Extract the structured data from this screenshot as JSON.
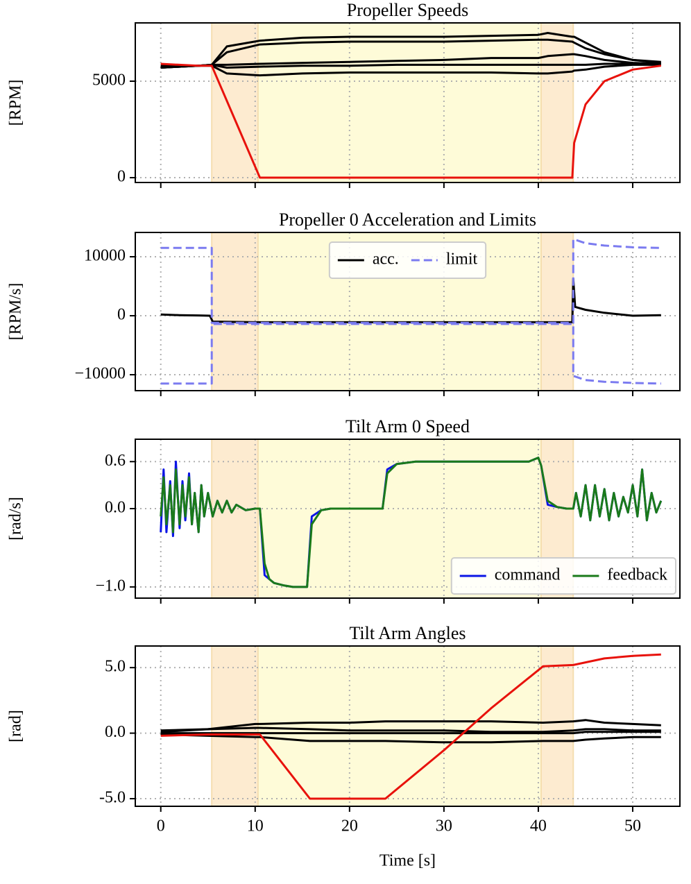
{
  "chart_data": [
    {
      "type": "line",
      "title": "Propeller Speeds",
      "ylabel": "[RPM]",
      "xlim": [
        -2.7,
        55
      ],
      "xticks": [
        0,
        10,
        20,
        30,
        40,
        50
      ],
      "show_xtick_labels": false,
      "ylim": [
        -250,
        8020
      ],
      "yticks": [
        0,
        5000
      ],
      "grid": true,
      "spans": [
        {
          "x0": 5.4,
          "x1": 43.7,
          "color": "#fdebd0"
        },
        {
          "x0": 10.3,
          "x1": 40.3,
          "color": "#fefbd8"
        }
      ],
      "series": [
        {
          "color": "#000000",
          "x": [
            0,
            2,
            4,
            5.4,
            7,
            10.5,
            15,
            20,
            25,
            30,
            35,
            40,
            41,
            43.6,
            43.8,
            45,
            47,
            50,
            53
          ],
          "values": [
            5750,
            5800,
            5800,
            5850,
            6800,
            7100,
            7250,
            7300,
            7300,
            7300,
            7350,
            7400,
            7500,
            7300,
            7300,
            7000,
            6500,
            6100,
            5950
          ]
        },
        {
          "color": "#000000",
          "x": [
            0,
            2,
            4,
            5.4,
            7,
            10.5,
            15,
            20,
            25,
            30,
            35,
            40,
            41,
            43.6,
            43.8,
            45,
            47,
            50,
            53
          ],
          "values": [
            5700,
            5750,
            5800,
            5850,
            6500,
            6900,
            7000,
            7050,
            7050,
            7050,
            7100,
            7150,
            7150,
            7050,
            7000,
            6700,
            6400,
            6100,
            6000
          ]
        },
        {
          "color": "#000000",
          "x": [
            0,
            2,
            4,
            5.4,
            7,
            10.5,
            15,
            20,
            25,
            30,
            35,
            40,
            41,
            43.6,
            43.8,
            45,
            47,
            50,
            53
          ],
          "values": [
            5700,
            5750,
            5800,
            5850,
            5850,
            5900,
            5950,
            6000,
            6050,
            6100,
            6200,
            6200,
            6300,
            6400,
            6400,
            6300,
            6100,
            5950,
            5900
          ]
        },
        {
          "color": "#000000",
          "x": [
            0,
            2,
            4,
            5.4,
            7,
            10.5,
            15,
            20,
            25,
            30,
            35,
            40,
            41,
            43.6,
            43.8,
            45,
            47,
            50,
            53
          ],
          "values": [
            5800,
            5800,
            5800,
            5850,
            5700,
            5750,
            5800,
            5800,
            5850,
            5850,
            5850,
            5850,
            5850,
            5850,
            5850,
            5850,
            5900,
            5900,
            5900
          ]
        },
        {
          "color": "#000000",
          "x": [
            0,
            2,
            4,
            5.4,
            7,
            10.5,
            15,
            20,
            25,
            30,
            35,
            40,
            41,
            43.6,
            43.8,
            45,
            47,
            50,
            53
          ],
          "values": [
            5700,
            5750,
            5800,
            5800,
            5400,
            5300,
            5400,
            5450,
            5450,
            5450,
            5450,
            5400,
            5400,
            5500,
            5550,
            5600,
            5750,
            5850,
            5850
          ]
        },
        {
          "color": "#e8120c",
          "x": [
            0,
            2,
            4,
            5.4,
            7,
            10.5,
            15,
            20,
            25,
            30,
            35,
            40,
            41,
            43.6,
            43.8,
            45,
            47,
            50,
            53
          ],
          "values": [
            5900,
            5850,
            5800,
            5800,
            3980,
            0,
            0,
            0,
            0,
            0,
            0,
            0,
            0,
            0,
            1800,
            3800,
            5000,
            5600,
            5800
          ]
        }
      ]
    },
    {
      "type": "line",
      "title": "Propeller 0 Acceleration and Limits",
      "ylabel": "[RPM/s]",
      "xlim": [
        -2.7,
        55
      ],
      "xticks": [
        0,
        10,
        20,
        30,
        40,
        50
      ],
      "show_xtick_labels": false,
      "ylim": [
        -12700,
        14120
      ],
      "yticks": [
        {
          "value": -10000,
          "label": "−10000"
        },
        0,
        10000
      ],
      "grid": true,
      "legend": "upper center",
      "spans": [
        {
          "x0": 5.4,
          "x1": 43.7,
          "color": "#fdebd0"
        },
        {
          "x0": 10.3,
          "x1": 40.3,
          "color": "#fefbd8"
        }
      ],
      "series": [
        {
          "name": "acc.",
          "color": "#000000",
          "x": [
            0,
            2,
            4,
            5.2,
            5.5,
            10,
            20,
            30,
            40,
            43.6,
            43.7,
            43.9,
            45,
            47,
            50,
            53
          ],
          "values": [
            200,
            100,
            50,
            0,
            -1000,
            -1100,
            -1100,
            -1100,
            -1100,
            -1100,
            6300,
            1500,
            1000,
            500,
            0,
            100
          ]
        },
        {
          "name": "limit",
          "color": "#7b7bf0",
          "dashed": true,
          "x": [
            0,
            5.4,
            5.4,
            43.7,
            43.7,
            45,
            47,
            50,
            53
          ],
          "values": [
            11500,
            11500,
            -1200,
            -1200,
            13000,
            12300,
            11900,
            11600,
            11500
          ]
        },
        {
          "color": "#7b7bf0",
          "dashed": true,
          "x": [
            0,
            5.4,
            5.4,
            43.7,
            43.7,
            45,
            47,
            50,
            53
          ],
          "values": [
            -11500,
            -11500,
            -1400,
            -1400,
            -10200,
            -10900,
            -11200,
            -11400,
            -11500
          ]
        }
      ]
    },
    {
      "type": "line",
      "title": "Tilt Arm 0 Speed",
      "ylabel": "[rad/s]",
      "xlim": [
        -2.7,
        55
      ],
      "xticks": [
        0,
        10,
        20,
        30,
        40,
        50
      ],
      "show_xtick_labels": false,
      "ylim": [
        -1.143,
        0.886
      ],
      "yticks": [
        {
          "value": -1,
          "label": "−1.0"
        },
        {
          "value": 0,
          "label": "0.0"
        },
        0.6
      ],
      "grid": true,
      "legend": "lower right",
      "spans": [
        {
          "x0": 5.4,
          "x1": 43.7,
          "color": "#fdebd0"
        },
        {
          "x0": 10.3,
          "x1": 40.3,
          "color": "#fefbd8"
        }
      ],
      "series": [
        {
          "name": "command",
          "color": "#0a14e6",
          "x": [
            0,
            0.3,
            0.6,
            1,
            1.3,
            1.6,
            2,
            2.3,
            2.6,
            3,
            3.3,
            3.6,
            4,
            4.3,
            4.6,
            5,
            5.5,
            6,
            6.5,
            7,
            7.5,
            8,
            9,
            10,
            10.5,
            11,
            11.5,
            12,
            13,
            14,
            15,
            15.5,
            16,
            17,
            18,
            20,
            22,
            23.5,
            24,
            25,
            27,
            30,
            33,
            36,
            39,
            40,
            40.3,
            41,
            42,
            43,
            43.7,
            44,
            44.5,
            45,
            45.5,
            46,
            46.5,
            47,
            47.5,
            48,
            48.5,
            49,
            49.5,
            50,
            50.5,
            51,
            51.5,
            52,
            52.5,
            53
          ],
          "values": [
            -0.3,
            0.5,
            -0.3,
            0.35,
            -0.35,
            0.6,
            -0.25,
            0.35,
            -0.15,
            0.45,
            -0.2,
            0.2,
            -0.3,
            0.3,
            -0.1,
            0.2,
            -0.1,
            0.1,
            -0.05,
            0.1,
            -0.05,
            0.05,
            -0.02,
            0,
            0,
            -0.85,
            -0.9,
            -0.95,
            -0.98,
            -1,
            -1,
            -1,
            -0.1,
            -0.02,
            0,
            0,
            0,
            0,
            0.5,
            0.57,
            0.6,
            0.6,
            0.6,
            0.6,
            0.6,
            0.65,
            0.55,
            0.05,
            0.02,
            0,
            0,
            0.2,
            -0.1,
            0.3,
            -0.15,
            0.3,
            -0.1,
            0.25,
            -0.15,
            0.2,
            -0.1,
            0.15,
            -0.05,
            0.3,
            -0.1,
            0.5,
            -0.15,
            0.2,
            -0.05,
            0.1
          ]
        },
        {
          "name": "feedback",
          "color": "#1a7a1a",
          "x": [
            0,
            0.3,
            0.6,
            1,
            1.3,
            1.6,
            2,
            2.3,
            2.6,
            3,
            3.3,
            3.6,
            4,
            4.3,
            4.6,
            5,
            5.5,
            6,
            6.5,
            7,
            7.5,
            8,
            9,
            10,
            10.5,
            11,
            11.5,
            12,
            13,
            14,
            15,
            15.5,
            16,
            17,
            18,
            20,
            22,
            23.5,
            24,
            25,
            27,
            30,
            33,
            36,
            39,
            40,
            40.3,
            41,
            42,
            43,
            43.7,
            44,
            44.5,
            45,
            45.5,
            46,
            46.5,
            47,
            47.5,
            48,
            48.5,
            49,
            49.5,
            50,
            50.5,
            51,
            51.5,
            52,
            52.5,
            53
          ],
          "values": [
            -0.1,
            0.4,
            -0.2,
            0.3,
            -0.3,
            0.5,
            -0.2,
            0.3,
            -0.1,
            0.4,
            -0.2,
            0.2,
            -0.3,
            0.3,
            -0.1,
            0.2,
            -0.1,
            0.1,
            -0.05,
            0.1,
            -0.05,
            0.05,
            -0.02,
            0,
            0,
            -0.7,
            -0.9,
            -0.95,
            -0.98,
            -1,
            -1,
            -1,
            -0.2,
            -0.02,
            0,
            0,
            0,
            0,
            0.45,
            0.57,
            0.6,
            0.6,
            0.6,
            0.6,
            0.6,
            0.65,
            0.55,
            0.1,
            0.02,
            0,
            0,
            0.2,
            -0.1,
            0.3,
            -0.15,
            0.3,
            -0.1,
            0.25,
            -0.15,
            0.2,
            -0.1,
            0.15,
            -0.05,
            0.3,
            -0.1,
            0.5,
            -0.15,
            0.2,
            -0.05,
            0.1
          ]
        }
      ]
    },
    {
      "type": "line",
      "title": "Tilt Arm Angles",
      "ylabel": "[rad]",
      "xlabel": "Time [s]",
      "xlim": [
        -2.7,
        55
      ],
      "xticks": [
        0,
        10,
        20,
        30,
        40,
        50
      ],
      "show_xtick_labels": true,
      "ylim": [
        -5.58,
        6.65
      ],
      "yticks": [
        {
          "value": -5,
          "label": "-5.0"
        },
        {
          "value": 0,
          "label": "0.0"
        },
        {
          "value": 5,
          "label": "5.0"
        }
      ],
      "grid": true,
      "spans": [
        {
          "x0": 5.4,
          "x1": 43.7,
          "color": "#fdebd0"
        },
        {
          "x0": 10.3,
          "x1": 40.3,
          "color": "#fefbd8"
        }
      ],
      "series": [
        {
          "color": "#000000",
          "x": [
            0,
            5,
            10,
            10.5,
            15.8,
            20,
            23.8,
            30,
            35,
            40.5,
            43.7,
            45,
            47,
            50,
            53
          ],
          "values": [
            0.1,
            0.3,
            0.7,
            0.7,
            0.8,
            0.8,
            0.9,
            0.9,
            0.9,
            0.8,
            0.9,
            1.0,
            0.8,
            0.7,
            0.6
          ]
        },
        {
          "color": "#000000",
          "x": [
            0,
            5,
            10,
            10.5,
            15.8,
            20,
            23.8,
            30,
            35,
            40.5,
            43.7,
            45,
            47,
            50,
            53
          ],
          "values": [
            0.2,
            0.3,
            0.4,
            0.4,
            0.3,
            0.2,
            0.2,
            0.2,
            0.1,
            0.1,
            0.2,
            0.3,
            0.3,
            0.2,
            0.2
          ]
        },
        {
          "color": "#000000",
          "x": [
            0,
            5,
            10,
            10.5,
            15.8,
            20,
            23.8,
            30,
            35,
            40.5,
            43.7,
            45,
            47,
            50,
            53
          ],
          "values": [
            0,
            0,
            0,
            0,
            0,
            0,
            0,
            0,
            0,
            0,
            0,
            0.1,
            0.1,
            0.1,
            0.1
          ]
        },
        {
          "color": "#000000",
          "x": [
            0,
            5,
            10,
            10.5,
            15.8,
            20,
            23.8,
            30,
            35,
            40.5,
            43.7,
            45,
            47,
            50,
            53
          ],
          "values": [
            -0.1,
            -0.2,
            -0.3,
            -0.3,
            -0.6,
            -0.6,
            -0.6,
            -0.7,
            -0.7,
            -0.6,
            -0.6,
            -0.5,
            -0.4,
            -0.3,
            -0.3
          ]
        },
        {
          "color": "#e8120c",
          "x": [
            0,
            5,
            10,
            10.5,
            15.8,
            20,
            23.8,
            30,
            35,
            40.5,
            43.7,
            45,
            47,
            50,
            53
          ],
          "values": [
            -0.2,
            -0.1,
            -0.1,
            -0.1,
            -5,
            -5,
            -5,
            -1.3,
            1.9,
            5.1,
            5.2,
            5.4,
            5.7,
            5.9,
            6.0
          ]
        }
      ]
    }
  ]
}
